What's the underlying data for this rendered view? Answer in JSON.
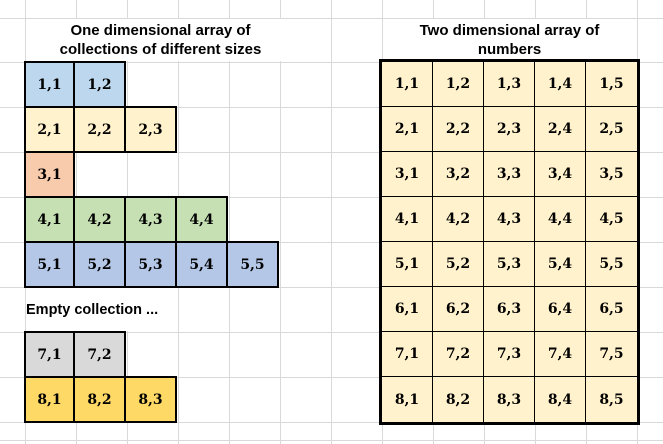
{
  "sheet": {
    "background": "#ffffff",
    "gridline_color": "#d9d9d9",
    "border_color": "#000000",
    "text_color": "#000000"
  },
  "left_panel": {
    "title_line1": "One dimensional array of",
    "title_line2": "collections of different sizes",
    "rows": [
      {
        "type": "cells",
        "fill": "#bdd7ee",
        "cells": [
          "1,1",
          "1,2"
        ]
      },
      {
        "type": "cells",
        "fill": "#fff2cc",
        "cells": [
          "2,1",
          "2,2",
          "2,3"
        ]
      },
      {
        "type": "cells",
        "fill": "#f8cbad",
        "cells": [
          "3,1"
        ]
      },
      {
        "type": "cells",
        "fill": "#c6e0b4",
        "cells": [
          "4,1",
          "4,2",
          "4,3",
          "4,4"
        ]
      },
      {
        "type": "cells",
        "fill": "#b4c7e7",
        "cells": [
          "5,1",
          "5,2",
          "5,3",
          "5,4",
          "5,5"
        ]
      },
      {
        "type": "label",
        "label": "Empty collection ..."
      },
      {
        "type": "cells",
        "fill": "#d9d9d9",
        "cells": [
          "7,1",
          "7,2"
        ]
      },
      {
        "type": "cells",
        "fill": "#ffd966",
        "cells": [
          "8,1",
          "8,2",
          "8,3"
        ]
      }
    ]
  },
  "right_panel": {
    "title_line1": "Two dimensional array of",
    "title_line2": "numbers",
    "fill": "#fff2cc",
    "rows": [
      [
        "1,1",
        "1,2",
        "1,3",
        "1,4",
        "1,5"
      ],
      [
        "2,1",
        "2,2",
        "2,3",
        "2,4",
        "2,5"
      ],
      [
        "3,1",
        "3,2",
        "3,3",
        "3,4",
        "3,5"
      ],
      [
        "4,1",
        "4,2",
        "4,3",
        "4,4",
        "4,5"
      ],
      [
        "5,1",
        "5,2",
        "5,3",
        "5,4",
        "5,5"
      ],
      [
        "6,1",
        "6,2",
        "6,3",
        "6,4",
        "6,5"
      ],
      [
        "7,1",
        "7,2",
        "7,3",
        "7,4",
        "7,5"
      ],
      [
        "8,1",
        "8,2",
        "8,3",
        "8,4",
        "8,5"
      ]
    ]
  }
}
